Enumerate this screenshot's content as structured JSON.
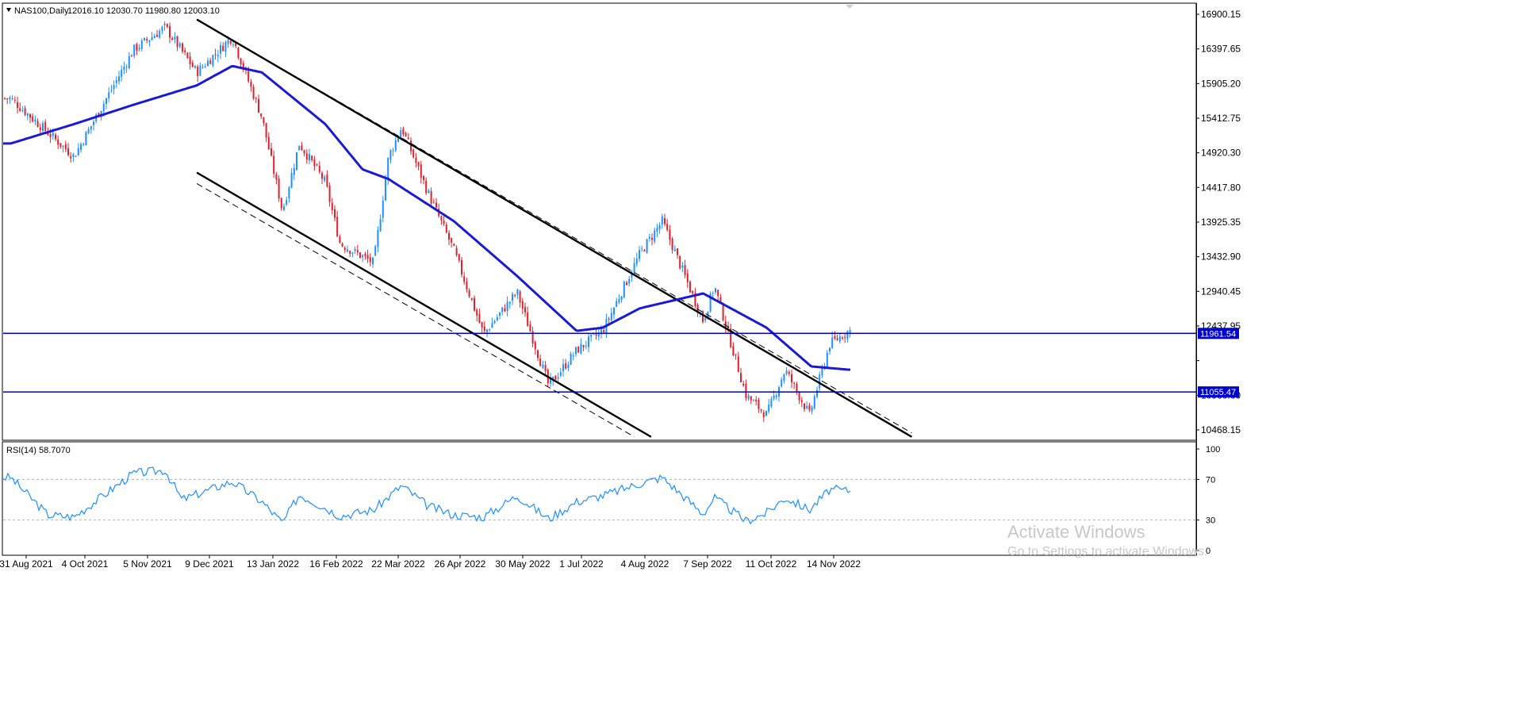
{
  "chart_data": [
    {
      "type": "candlestick",
      "symbol_label": "NAS100,Daily",
      "ohlc_label": "12016.10 12030.70 11980.80 12003.10",
      "y_ticks": [
        "16900.15",
        "16397.65",
        "15905.20",
        "15412.75",
        "14920.30",
        "14417.80",
        "13925.35",
        "13432.90",
        "12940.45",
        "12437.95",
        "",
        "10960.60",
        "10468.15"
      ],
      "ylim": [
        10320,
        17060
      ],
      "x_ticks": [
        "31 Aug 2021",
        "4 Oct 2021",
        "5 Nov 2021",
        "9 Dec 2021",
        "13 Jan 2022",
        "16 Feb 2022",
        "22 Mar 2022",
        "26 Apr 2022",
        "30 May 2022",
        "1 Jul 2022",
        "4 Aug 2022",
        "7 Sep 2022",
        "11 Oct 2022",
        "14 Nov 2022"
      ],
      "horizontal_lines": [
        {
          "value": 11961.54,
          "label": "11961.54"
        },
        {
          "value": 11055.47,
          "label": "11055.47"
        }
      ],
      "price_anchor_points": [
        {
          "date": "31 Aug 2021",
          "close": 15600
        },
        {
          "date": "4 Oct 2021",
          "close": 14700
        },
        {
          "date": "5 Nov 2021",
          "close": 16350
        },
        {
          "date": "22 Nov 2021",
          "close": 16700
        },
        {
          "date": "9 Dec 2021",
          "close": 16000
        },
        {
          "date": "28 Dec 2021",
          "close": 16550
        },
        {
          "date": "13 Jan 2022",
          "close": 15300
        },
        {
          "date": "24 Jan 2022",
          "close": 13850
        },
        {
          "date": "2 Feb 2022",
          "close": 14900
        },
        {
          "date": "16 Feb 2022",
          "close": 14300
        },
        {
          "date": "24 Feb 2022",
          "close": 13350
        },
        {
          "date": "14 Mar 2022",
          "close": 13050
        },
        {
          "date": "22 Mar 2022",
          "close": 14700
        },
        {
          "date": "29 Mar 2022",
          "close": 15150
        },
        {
          "date": "12 Apr 2022",
          "close": 14150
        },
        {
          "date": "26 Apr 2022",
          "close": 13250
        },
        {
          "date": "12 May 2022",
          "close": 11950
        },
        {
          "date": "30 May 2022",
          "close": 12600
        },
        {
          "date": "16 Jun 2022",
          "close": 11150
        },
        {
          "date": "1 Jul 2022",
          "close": 11700
        },
        {
          "date": "15 Jul 2022",
          "close": 12000
        },
        {
          "date": "4 Aug 2022",
          "close": 13200
        },
        {
          "date": "16 Aug 2022",
          "close": 13700
        },
        {
          "date": "7 Sep 2022",
          "close": 12150
        },
        {
          "date": "13 Sep 2022",
          "close": 12700
        },
        {
          "date": "30 Sep 2022",
          "close": 11000
        },
        {
          "date": "11 Oct 2022",
          "close": 10700
        },
        {
          "date": "21 Oct 2022",
          "close": 11400
        },
        {
          "date": "3 Nov 2022",
          "close": 10700
        },
        {
          "date": "14 Nov 2022",
          "close": 11800
        },
        {
          "date": "24 Nov 2022",
          "close": 12000
        }
      ],
      "moving_average_points": [
        {
          "date": "31 Aug 2021",
          "value": 14900
        },
        {
          "date": "4 Oct 2021",
          "value": 15200
        },
        {
          "date": "5 Nov 2021",
          "value": 15500
        },
        {
          "date": "9 Dec 2021",
          "value": 15800
        },
        {
          "date": "28 Dec 2021",
          "value": 16100
        },
        {
          "date": "13 Jan 2022",
          "value": 16000
        },
        {
          "date": "16 Feb 2022",
          "value": 15200
        },
        {
          "date": "8 Mar 2022",
          "value": 14500
        },
        {
          "date": "22 Mar 2022",
          "value": 14350
        },
        {
          "date": "26 Apr 2022",
          "value": 13700
        },
        {
          "date": "16 May 2022",
          "value": 13200
        },
        {
          "date": "30 May 2022",
          "value": 12850
        },
        {
          "date": "1 Jul 2022",
          "value": 12000
        },
        {
          "date": "15 Jul 2022",
          "value": 12050
        },
        {
          "date": "4 Aug 2022",
          "value": 12350
        },
        {
          "date": "7 Sep 2022",
          "value": 12580
        },
        {
          "date": "11 Oct 2022",
          "value": 12050
        },
        {
          "date": "4 Nov 2022",
          "value": 11450
        },
        {
          "date": "24 Nov 2022",
          "value": 11400
        }
      ],
      "trend_lines": [
        {
          "style": "solid",
          "from": {
            "date": "9 Dec 2021",
            "value": 16820
          },
          "to": {
            "date": "28 Dec 2022",
            "value": 10360
          }
        },
        {
          "style": "dashed",
          "from": {
            "date": "9 Dec 2021",
            "value": 16820
          },
          "to": {
            "date": "28 Dec 2022",
            "value": 10420
          }
        },
        {
          "style": "solid",
          "from": {
            "date": "9 Dec 2021",
            "value": 14450
          },
          "to": {
            "date": "10 Aug 2022",
            "value": 10360
          }
        },
        {
          "style": "dashed",
          "from": {
            "date": "9 Dec 2021",
            "value": 14280
          },
          "to": {
            "date": "1 Aug 2022",
            "value": 10360
          }
        }
      ]
    },
    {
      "type": "line",
      "label": "RSI(14) 58.7070",
      "y_ticks": [
        "100",
        "70",
        "30",
        "0"
      ],
      "ylim": [
        0,
        100
      ],
      "levels": [
        70,
        30
      ],
      "points": [
        {
          "date": "31 Aug 2021",
          "value": 72
        },
        {
          "date": "20 Sep 2021",
          "value": 35
        },
        {
          "date": "4 Oct 2021",
          "value": 33
        },
        {
          "date": "5 Nov 2021",
          "value": 76
        },
        {
          "date": "22 Nov 2021",
          "value": 79
        },
        {
          "date": "1 Dec 2021",
          "value": 50
        },
        {
          "date": "28 Dec 2021",
          "value": 68
        },
        {
          "date": "13 Jan 2022",
          "value": 48
        },
        {
          "date": "24 Jan 2022",
          "value": 27
        },
        {
          "date": "2 Feb 2022",
          "value": 55
        },
        {
          "date": "16 Feb 2022",
          "value": 42
        },
        {
          "date": "24 Feb 2022",
          "value": 34
        },
        {
          "date": "14 Mar 2022",
          "value": 40
        },
        {
          "date": "29 Mar 2022",
          "value": 64
        },
        {
          "date": "12 Apr 2022",
          "value": 44
        },
        {
          "date": "26 Apr 2022",
          "value": 35
        },
        {
          "date": "12 May 2022",
          "value": 33
        },
        {
          "date": "30 May 2022",
          "value": 54
        },
        {
          "date": "16 Jun 2022",
          "value": 31
        },
        {
          "date": "1 Jul 2022",
          "value": 48
        },
        {
          "date": "15 Jul 2022",
          "value": 54
        },
        {
          "date": "4 Aug 2022",
          "value": 66
        },
        {
          "date": "16 Aug 2022",
          "value": 72
        },
        {
          "date": "7 Sep 2022",
          "value": 36
        },
        {
          "date": "13 Sep 2022",
          "value": 52
        },
        {
          "date": "30 Sep 2022",
          "value": 29
        },
        {
          "date": "11 Oct 2022",
          "value": 37
        },
        {
          "date": "21 Oct 2022",
          "value": 52
        },
        {
          "date": "3 Nov 2022",
          "value": 40
        },
        {
          "date": "14 Nov 2022",
          "value": 60
        },
        {
          "date": "24 Nov 2022",
          "value": 59
        }
      ]
    }
  ],
  "watermark": {
    "line1": "Activate Windows",
    "line2": "Go to Settings to activate Windows."
  },
  "colors": {
    "bull": "#1e90ff",
    "bear": "#e0202a",
    "ma": "#1a1ad6",
    "hline": "#0000cc",
    "rsi": "#1e90ff",
    "trend": "#000000"
  }
}
